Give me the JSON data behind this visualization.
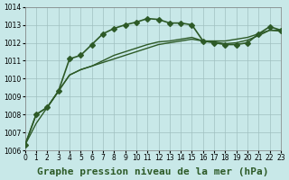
{
  "title": "Graphe pression niveau de la mer (hPa)",
  "background_color": "#c8e8e8",
  "plot_bg_color": "#c8e8e8",
  "grid_color": "#a0c0c0",
  "line_color": "#2d5a27",
  "xlim": [
    0,
    23
  ],
  "ylim": [
    1006,
    1014
  ],
  "yticks": [
    1006,
    1007,
    1008,
    1009,
    1010,
    1011,
    1012,
    1013,
    1014
  ],
  "xticks": [
    0,
    1,
    2,
    3,
    4,
    5,
    6,
    7,
    8,
    9,
    10,
    11,
    12,
    13,
    14,
    15,
    16,
    17,
    18,
    19,
    20,
    21,
    22,
    23
  ],
  "series": [
    {
      "x": [
        0,
        1,
        2,
        3,
        4,
        5,
        6,
        7,
        8,
        9,
        10,
        11,
        12,
        13,
        14,
        15,
        16,
        17,
        18,
        19,
        20,
        21,
        22,
        23
      ],
      "y": [
        1006.3,
        1008.0,
        1008.4,
        1009.3,
        1011.1,
        1011.3,
        1011.9,
        1012.5,
        1012.8,
        1013.0,
        1013.15,
        1013.35,
        1013.3,
        1013.1,
        1013.1,
        1013.0,
        1012.1,
        1012.0,
        1011.9,
        1011.9,
        1012.0,
        1012.5,
        1012.9,
        1012.7
      ],
      "marker": "D",
      "markersize": 3,
      "linewidth": 1.2
    },
    {
      "x": [
        0,
        1,
        2,
        3,
        4,
        5,
        6,
        7,
        8,
        9,
        10,
        11,
        12,
        13,
        14,
        15,
        16,
        17,
        18,
        19,
        20,
        21,
        22,
        23
      ],
      "y": [
        1006.3,
        1008.0,
        1008.4,
        1009.3,
        1010.2,
        1010.5,
        1010.7,
        1010.9,
        1011.1,
        1011.3,
        1011.5,
        1011.7,
        1011.9,
        1012.0,
        1012.1,
        1012.2,
        1012.1,
        1012.1,
        1012.1,
        1012.2,
        1012.3,
        1012.5,
        1012.7,
        1012.7
      ],
      "marker": null,
      "markersize": 0,
      "linewidth": 1.0
    },
    {
      "x": [
        0,
        1,
        2,
        3,
        4,
        5,
        6,
        7,
        8,
        9,
        10,
        11,
        12,
        13,
        14,
        15,
        16,
        17,
        18,
        19,
        20,
        21,
        22,
        23
      ],
      "y": [
        1006.3,
        1007.5,
        1008.4,
        1009.3,
        1010.2,
        1010.5,
        1010.7,
        1011.0,
        1011.3,
        1011.5,
        1011.7,
        1011.9,
        1012.05,
        1012.1,
        1012.2,
        1012.3,
        1012.1,
        1012.05,
        1011.95,
        1012.0,
        1012.15,
        1012.4,
        1012.7,
        1012.65
      ],
      "marker": null,
      "markersize": 0,
      "linewidth": 1.0
    }
  ],
  "title_fontsize": 8,
  "tick_fontsize": 6
}
